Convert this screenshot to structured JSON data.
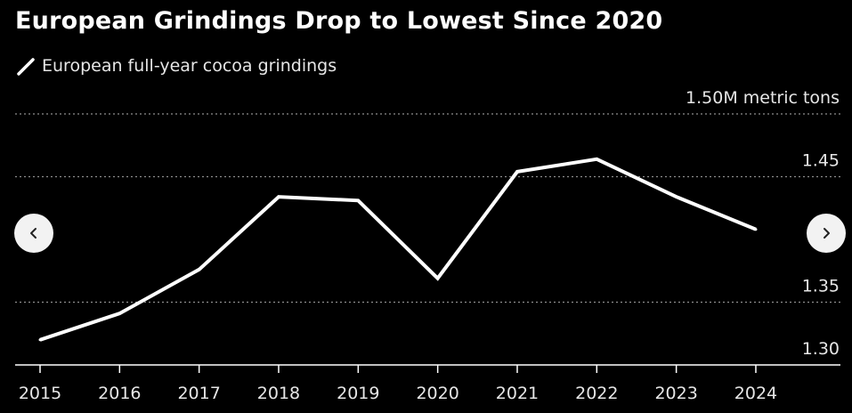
{
  "title": "European Grindings Drop to Lowest Since 2020",
  "legend": {
    "label": "European full-year cocoa grindings",
    "icon": "line-swatch-icon"
  },
  "nav": {
    "prev_icon": "chevron-left-icon",
    "next_icon": "chevron-right-icon"
  },
  "colors": {
    "background": "#000000",
    "line": "#ffffff",
    "grid": "#8c8c8c",
    "axis": "#ffffff",
    "text": "#e6e6e6"
  },
  "chart_data": {
    "type": "line",
    "title": "European Grindings Drop to Lowest Since 2020",
    "categories": [
      "2015",
      "2016",
      "2017",
      "2018",
      "2019",
      "2020",
      "2021",
      "2022",
      "2023",
      "2024"
    ],
    "series": [
      {
        "name": "European full-year cocoa grindings",
        "values": [
          1.32,
          1.341,
          1.376,
          1.434,
          1.431,
          1.369,
          1.454,
          1.464,
          1.434,
          1.408
        ]
      }
    ],
    "ylim": [
      1.3,
      1.5
    ],
    "y_ticks": [
      1.3,
      1.35,
      1.45,
      1.5
    ],
    "y_tick_labels": [
      "1.30",
      "1.35",
      "1.45",
      "1.50M metric tons"
    ],
    "grid": true,
    "legend_position": "top-left",
    "xlabel": "",
    "ylabel": ""
  }
}
